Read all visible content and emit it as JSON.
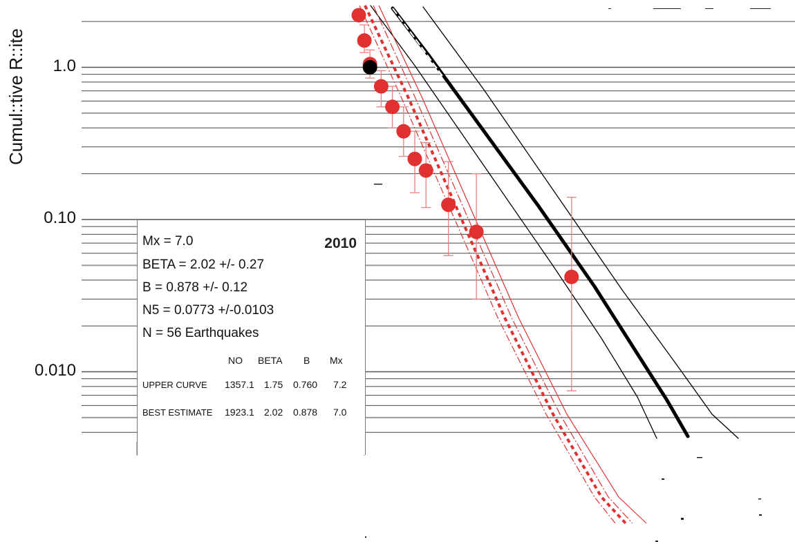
{
  "chart_data": {
    "type": "scatter",
    "ylabel": "Cumul::tive R::ite",
    "yscale": "log",
    "ylim": [
      0.004,
      2.8
    ],
    "y_ticks": [
      {
        "value": 1.0,
        "label": "1.0"
      },
      {
        "value": 0.1,
        "label": "0.10"
      },
      {
        "value": 0.01,
        "label": "0.010"
      }
    ],
    "grid": true,
    "observed": {
      "color": "#e03030",
      "points": [
        {
          "x": 5.0,
          "y": 2.2
        },
        {
          "x": 5.05,
          "y": 1.5
        },
        {
          "x": 5.1,
          "y": 1.05
        },
        {
          "x": 5.2,
          "y": 0.75
        },
        {
          "x": 5.3,
          "y": 0.55
        },
        {
          "x": 5.4,
          "y": 0.38
        },
        {
          "x": 5.5,
          "y": 0.25
        },
        {
          "x": 5.6,
          "y": 0.21
        },
        {
          "x": 5.8,
          "y": 0.125
        },
        {
          "x": 6.05,
          "y": 0.083
        },
        {
          "x": 6.9,
          "y": 0.042
        }
      ],
      "error_low": [
        null,
        1.25,
        0.85,
        0.55,
        0.4,
        0.26,
        0.15,
        0.12,
        0.058,
        0.03,
        0.0075
      ],
      "error_high": [
        null,
        1.9,
        1.3,
        0.95,
        0.75,
        0.55,
        0.38,
        0.32,
        0.24,
        0.2,
        0.14
      ]
    },
    "highlight_point": {
      "x": 5.1,
      "y": 1.0,
      "color": "#000000"
    },
    "series": [
      {
        "name": "UPPER CURVE",
        "NO": "1357.1",
        "BETA": "1.75",
        "B": "0.760",
        "Mx": "7.2"
      },
      {
        "name": "BEST ESTIMATE",
        "NO": "1923.1",
        "BETA": "2.02",
        "B": "0.878",
        "Mx": "7.0"
      }
    ]
  },
  "info": {
    "mx": "Mx = 7.0",
    "year": "2010",
    "beta": "BETA = 2.02  +/- 0.27",
    "b": "B = 0.878  +/- 0.12",
    "n5": "N5 =   0.0773 +/-0.0103",
    "n": "N = 56 Earthquakes",
    "table_headers": [
      "NO",
      "BETA",
      "B",
      "Mx"
    ],
    "row_upper_label": "UPPER CURVE",
    "row_best_label": "BEST ESTIMATE",
    "row_upper": [
      "1357.1",
      "1.75",
      "0.760",
      "7.2"
    ],
    "row_best": [
      "1923.1",
      "2.02",
      "0.878",
      "7.0"
    ]
  }
}
